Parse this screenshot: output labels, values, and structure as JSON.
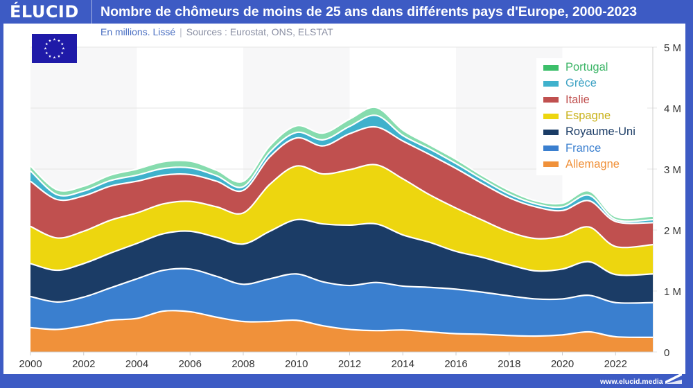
{
  "brand": {
    "logo_text": "ÉLUCID",
    "url": "www.elucid.media"
  },
  "header": {
    "title": "Nombre de chômeurs de moins de 25 ans dans différents pays d'Europe, 2000-2023",
    "subtitle_lead": "En millions. Lissé",
    "subtitle_separator": "|",
    "subtitle_sources": "Sources : Eurostat, ONS, ELSTAT"
  },
  "flag": {
    "name": "eu-flag-icon",
    "color": "#1f1aa8",
    "star_color": "#ffffff"
  },
  "colors": {
    "frame": "#3d5bc4",
    "grid": "#e4e4e4",
    "band": "#f7f7f8",
    "axis_text": "#333333"
  },
  "chart_data": {
    "type": "area",
    "stacked": true,
    "smoothed": true,
    "title": "Nombre de chômeurs de moins de 25 ans dans différents pays d'Europe, 2000-2023",
    "subtitle": "En millions. Lissé",
    "xlabel": "",
    "ylabel": "",
    "x": [
      2000,
      2001,
      2002,
      2003,
      2004,
      2005,
      2006,
      2007,
      2008,
      2009,
      2010,
      2011,
      2012,
      2013,
      2014,
      2015,
      2016,
      2017,
      2018,
      2019,
      2020,
      2021,
      2022,
      2023
    ],
    "xlim": [
      2000,
      2023.4
    ],
    "xticks": [
      2000,
      2002,
      2004,
      2006,
      2008,
      2010,
      2012,
      2014,
      2016,
      2018,
      2020,
      2022
    ],
    "xtick_labels": [
      "2000",
      "2002",
      "2004",
      "2006",
      "2008",
      "2010",
      "2012",
      "2014",
      "2016",
      "2018",
      "2020",
      "2022"
    ],
    "ylim": [
      0,
      5
    ],
    "yticks": [
      0,
      1,
      2,
      3,
      4,
      5
    ],
    "ytick_labels": [
      "0",
      "1 M",
      "2 M",
      "3 M",
      "4 M",
      "5 M"
    ],
    "y_axis_side": "right",
    "grid": true,
    "alternating_bands_years": 4,
    "legend_position": "top-right",
    "series": [
      {
        "name": "Allemagne",
        "color": "#f0913a",
        "label_color": "#f0913a",
        "values": [
          0.4,
          0.37,
          0.43,
          0.52,
          0.55,
          0.67,
          0.66,
          0.57,
          0.5,
          0.5,
          0.52,
          0.43,
          0.37,
          0.35,
          0.36,
          0.33,
          0.3,
          0.29,
          0.27,
          0.26,
          0.28,
          0.33,
          0.25,
          0.24
        ]
      },
      {
        "name": "France",
        "color": "#3a7fcf",
        "label_color": "#3a7fcf",
        "values": [
          0.51,
          0.45,
          0.47,
          0.53,
          0.65,
          0.67,
          0.7,
          0.67,
          0.61,
          0.7,
          0.76,
          0.72,
          0.72,
          0.79,
          0.72,
          0.73,
          0.73,
          0.69,
          0.65,
          0.61,
          0.59,
          0.6,
          0.56,
          0.57
        ]
      },
      {
        "name": "Royaume-Uni",
        "color": "#1b3c66",
        "label_color": "#1b3c66",
        "values": [
          0.54,
          0.52,
          0.55,
          0.57,
          0.58,
          0.6,
          0.62,
          0.64,
          0.66,
          0.78,
          0.89,
          0.95,
          0.99,
          0.96,
          0.84,
          0.74,
          0.62,
          0.57,
          0.51,
          0.46,
          0.49,
          0.55,
          0.46,
          0.47
        ]
      },
      {
        "name": "Espagne",
        "color": "#edd60f",
        "label_color": "#c9b21a",
        "values": [
          0.61,
          0.53,
          0.53,
          0.54,
          0.5,
          0.49,
          0.49,
          0.5,
          0.51,
          0.77,
          0.88,
          0.82,
          0.91,
          0.97,
          0.92,
          0.78,
          0.71,
          0.61,
          0.54,
          0.53,
          0.54,
          0.57,
          0.46,
          0.48
        ]
      },
      {
        "name": "Italie",
        "color": "#c0504f",
        "label_color": "#c0504f",
        "values": [
          0.74,
          0.63,
          0.58,
          0.56,
          0.52,
          0.47,
          0.44,
          0.42,
          0.37,
          0.45,
          0.46,
          0.46,
          0.59,
          0.62,
          0.62,
          0.66,
          0.65,
          0.6,
          0.56,
          0.52,
          0.42,
          0.43,
          0.41,
          0.36
        ]
      },
      {
        "name": "Grèce",
        "color": "#3fb1cc",
        "label_color": "#3fa3c4",
        "values": [
          0.17,
          0.08,
          0.08,
          0.09,
          0.1,
          0.11,
          0.11,
          0.09,
          0.06,
          0.08,
          0.09,
          0.1,
          0.12,
          0.19,
          0.09,
          0.09,
          0.08,
          0.07,
          0.06,
          0.05,
          0.06,
          0.09,
          0.03,
          0.05
        ]
      },
      {
        "name": "Portugal",
        "color": "#86dcae",
        "label_color": "#3cb567",
        "legend_color": "#3cbf6a",
        "values": [
          0.08,
          0.08,
          0.08,
          0.09,
          0.1,
          0.11,
          0.11,
          0.09,
          0.09,
          0.1,
          0.11,
          0.11,
          0.12,
          0.13,
          0.09,
          0.07,
          0.07,
          0.06,
          0.06,
          0.05,
          0.06,
          0.07,
          0.05,
          0.06
        ]
      }
    ]
  }
}
